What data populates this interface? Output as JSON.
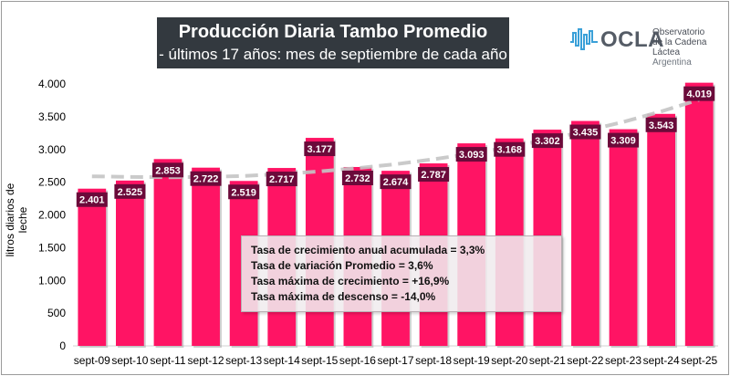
{
  "header": {
    "title": "Producción Diaria Tambo Promedio",
    "subtitle": "- últimos 17 años: mes de septiembre de cada año -"
  },
  "logo": {
    "word": "OCLA",
    "line1": "Observatorio",
    "line2": "de la Cadena Láctea",
    "line3": "Argentina"
  },
  "stats": [
    "Tasa de crecimiento anual acumulada = 3,3%",
    "Tasa de variación Promedio = 3,6%",
    "Tasa máxima de crecimiento = +16,9%",
    "Tasa máxima de descenso = -14,0%"
  ],
  "colors": {
    "bar": "#ff1464",
    "label_bg": "#6b0a3a",
    "trend": "#c4c4c4",
    "title_bg": "#33393f"
  },
  "chart_data": {
    "type": "bar",
    "title": "Producción Diaria Tambo Promedio",
    "subtitle": "- últimos 17 años: mes de septiembre de cada año -",
    "xlabel": "",
    "ylabel": "litros diarios de leche",
    "ylim": [
      0,
      4000
    ],
    "yticks": [
      0,
      500,
      1000,
      1500,
      2000,
      2500,
      3000,
      3500,
      4000
    ],
    "ytick_labels": [
      "0",
      "500",
      "1.000",
      "1.500",
      "2.000",
      "2.500",
      "3.000",
      "3.500",
      "4.000"
    ],
    "grid": false,
    "categories": [
      "sept-09",
      "sept-10",
      "sept-11",
      "sept-12",
      "sept-13",
      "sept-14",
      "sept-15",
      "sept-16",
      "sept-17",
      "sept-18",
      "sept-19",
      "sept-20",
      "sept-21",
      "sept-22",
      "sept-23",
      "sept-24",
      "sept-25"
    ],
    "values": [
      2401,
      2525,
      2853,
      2722,
      2519,
      2717,
      3177,
      2732,
      2674,
      2787,
      3093,
      3168,
      3302,
      3435,
      3309,
      3543,
      4019
    ],
    "value_labels": [
      "2.401",
      "2.525",
      "2.853",
      "2.722",
      "2.519",
      "2.717",
      "3.177",
      "2.732",
      "2.674",
      "2.787",
      "3.093",
      "3.168",
      "3.302",
      "3.435",
      "3.309",
      "3.543",
      "4.019"
    ],
    "trendline": {
      "type": "polynomial",
      "style": "dashed",
      "values": [
        2590,
        2580,
        2575,
        2580,
        2595,
        2625,
        2665,
        2715,
        2775,
        2850,
        2935,
        3035,
        3150,
        3280,
        3420,
        3580,
        3760
      ]
    }
  }
}
